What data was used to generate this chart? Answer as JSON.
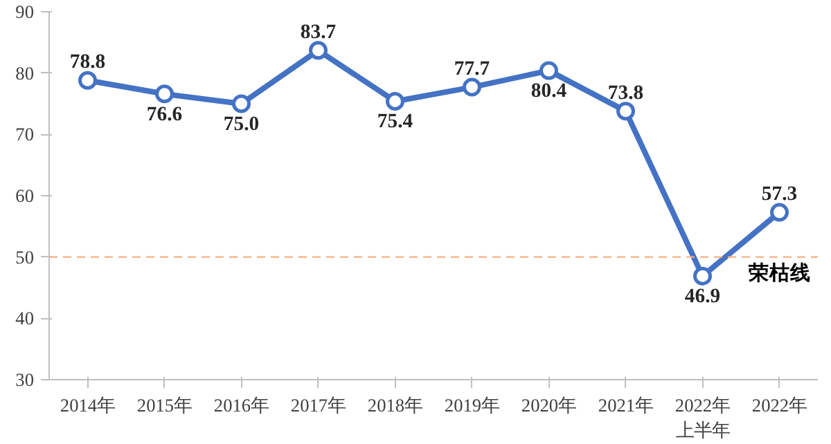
{
  "chart_data": {
    "type": "line",
    "categories": [
      "2014年",
      "2015年",
      "2016年",
      "2017年",
      "2018年",
      "2019年",
      "2020年",
      "2021年",
      "2022年上半年",
      "2022年"
    ],
    "series": [
      {
        "color": "#4472c4",
        "values": [
          78.8,
          76.6,
          75.0,
          83.7,
          75.4,
          77.7,
          80.4,
          73.8,
          46.9,
          57.3
        ],
        "value_labels": [
          "78.8",
          "76.6",
          "75.0",
          "83.7",
          "75.4",
          "77.7",
          "80.4",
          "73.8",
          "46.9",
          "57.3"
        ]
      }
    ],
    "ylim": [
      30,
      90
    ],
    "yticks": [
      30,
      40,
      50,
      60,
      70,
      80,
      90
    ],
    "grid": false,
    "marker": "circle",
    "line_style": "solid",
    "ref_lines": [
      {
        "axis": "y",
        "value": 50,
        "label": "荣枯线",
        "color": "#f4b183",
        "line_style": "dashed"
      }
    ]
  }
}
